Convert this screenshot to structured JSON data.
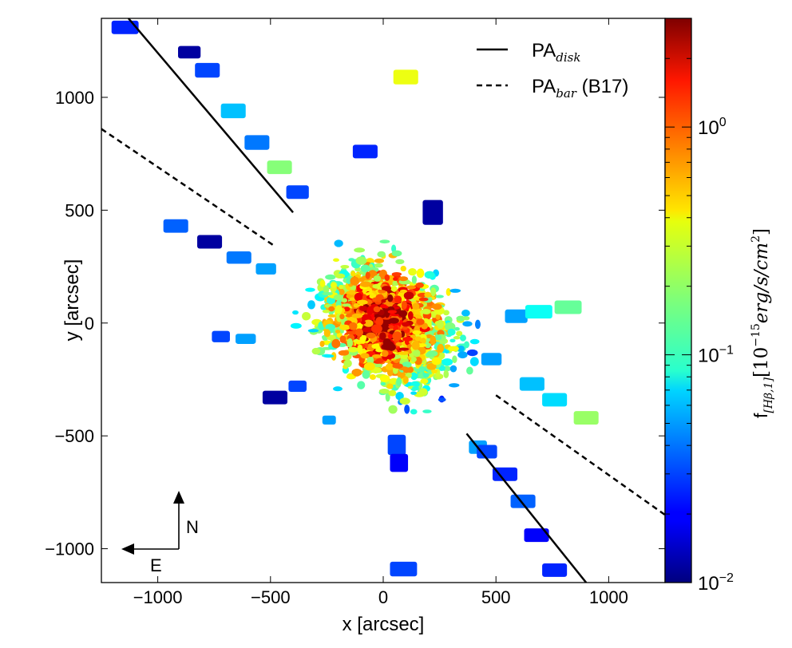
{
  "chart_data": {
    "type": "scatter",
    "title": "",
    "xlabel": "x [arcsec]",
    "ylabel": "y [arcsec]",
    "xlim": [
      -1250,
      1250
    ],
    "ylim": [
      -1150,
      1350
    ],
    "xticks": [
      -1000,
      -500,
      0,
      500,
      1000
    ],
    "xtick_labels": [
      "−1000",
      "−500",
      "0",
      "500",
      "1000"
    ],
    "yticks": [
      -1000,
      -500,
      0,
      500,
      1000
    ],
    "ytick_labels": [
      "−1000",
      "−500",
      "0",
      "500",
      "1000"
    ],
    "colorbar": {
      "label_main": "f",
      "label_sub": "[Hβ,1]",
      "label_rest": "[10",
      "label_exp": "−15",
      "label_tail": "erg/s/cm",
      "label_exp2": "2",
      "label_close": "]",
      "scale": "log",
      "range": [
        0.01,
        3.0
      ],
      "ticks": [
        {
          "value": 1.0,
          "base": "10",
          "exp": "0"
        },
        {
          "value": 0.1,
          "base": "10",
          "exp": "−1"
        },
        {
          "value": 0.01,
          "base": "10",
          "exp": "−2"
        }
      ],
      "colormap": "jet"
    },
    "legend": {
      "placement": "top-right",
      "entries": [
        {
          "base": "PA",
          "sub": "disk",
          "suffix": "",
          "style": "solid"
        },
        {
          "base": "PA",
          "sub": "bar",
          "suffix": " (B17)",
          "style": "dashed"
        }
      ]
    },
    "lines": [
      {
        "name": "PA_disk",
        "style": "solid",
        "segments": [
          [
            [
              -1130,
              1350
            ],
            [
              -400,
              490
            ]
          ],
          [
            [
              370,
              -490
            ],
            [
              900,
              -1150
            ]
          ]
        ]
      },
      {
        "name": "PA_bar",
        "style": "dashed",
        "segments": [
          [
            [
              -1250,
              860
            ],
            [
              -480,
              340
            ]
          ],
          [
            [
              500,
              -320
            ],
            [
              1250,
              -850
            ]
          ]
        ]
      }
    ],
    "compass": {
      "north": "N",
      "east": "E"
    },
    "outer_fields": [
      {
        "x": -1145,
        "y": 1310,
        "w": 120,
        "h": 60,
        "v": 0.025
      },
      {
        "x": -860,
        "y": 1200,
        "w": 100,
        "h": 55,
        "v": 0.012
      },
      {
        "x": -780,
        "y": 1120,
        "w": 110,
        "h": 65,
        "v": 0.03
      },
      {
        "x": -665,
        "y": 940,
        "w": 110,
        "h": 65,
        "v": 0.06
      },
      {
        "x": -560,
        "y": 800,
        "w": 110,
        "h": 65,
        "v": 0.04
      },
      {
        "x": -460,
        "y": 690,
        "w": 110,
        "h": 60,
        "v": 0.18
      },
      {
        "x": -380,
        "y": 580,
        "w": 100,
        "h": 60,
        "v": 0.03
      },
      {
        "x": 100,
        "y": 1090,
        "w": 110,
        "h": 65,
        "v": 0.32
      },
      {
        "x": -80,
        "y": 760,
        "w": 110,
        "h": 60,
        "v": 0.025
      },
      {
        "x": -920,
        "y": 430,
        "w": 110,
        "h": 60,
        "v": 0.035
      },
      {
        "x": -770,
        "y": 360,
        "w": 110,
        "h": 60,
        "v": 0.012
      },
      {
        "x": -640,
        "y": 290,
        "w": 110,
        "h": 55,
        "v": 0.04
      },
      {
        "x": -520,
        "y": 240,
        "w": 90,
        "h": 50,
        "v": 0.05
      },
      {
        "x": -720,
        "y": -60,
        "w": 80,
        "h": 50,
        "v": 0.03
      },
      {
        "x": -610,
        "y": -70,
        "w": 90,
        "h": 45,
        "v": 0.05
      },
      {
        "x": -480,
        "y": -330,
        "w": 110,
        "h": 60,
        "v": 0.012
      },
      {
        "x": -380,
        "y": -280,
        "w": 80,
        "h": 50,
        "v": 0.03
      },
      {
        "x": 220,
        "y": 490,
        "w": 90,
        "h": 110,
        "v": 0.012
      },
      {
        "x": -240,
        "y": -430,
        "w": 60,
        "h": 40,
        "v": 0.05
      },
      {
        "x": 60,
        "y": -540,
        "w": 80,
        "h": 90,
        "v": 0.03
      },
      {
        "x": 70,
        "y": -620,
        "w": 80,
        "h": 80,
        "v": 0.02
      },
      {
        "x": 90,
        "y": -1090,
        "w": 120,
        "h": 65,
        "v": 0.03
      },
      {
        "x": 420,
        "y": -550,
        "w": 80,
        "h": 60,
        "v": 0.05
      },
      {
        "x": 460,
        "y": -570,
        "w": 90,
        "h": 60,
        "v": 0.03
      },
      {
        "x": 540,
        "y": -670,
        "w": 110,
        "h": 60,
        "v": 0.025
      },
      {
        "x": 620,
        "y": -790,
        "w": 110,
        "h": 60,
        "v": 0.035
      },
      {
        "x": 680,
        "y": -940,
        "w": 110,
        "h": 60,
        "v": 0.02
      },
      {
        "x": 760,
        "y": -1095,
        "w": 110,
        "h": 60,
        "v": 0.025
      },
      {
        "x": 590,
        "y": 30,
        "w": 100,
        "h": 60,
        "v": 0.05
      },
      {
        "x": 690,
        "y": 50,
        "w": 120,
        "h": 60,
        "v": 0.09
      },
      {
        "x": 820,
        "y": 70,
        "w": 120,
        "h": 60,
        "v": 0.15
      },
      {
        "x": 660,
        "y": -270,
        "w": 110,
        "h": 60,
        "v": 0.06
      },
      {
        "x": 760,
        "y": -340,
        "w": 110,
        "h": 60,
        "v": 0.07
      },
      {
        "x": 900,
        "y": -420,
        "w": 110,
        "h": 60,
        "v": 0.2
      },
      {
        "x": 480,
        "y": -160,
        "w": 90,
        "h": 55,
        "v": 0.05
      },
      {
        "x": 160,
        "y": -220,
        "w": 80,
        "h": 50,
        "v": 0.15
      }
    ]
  }
}
